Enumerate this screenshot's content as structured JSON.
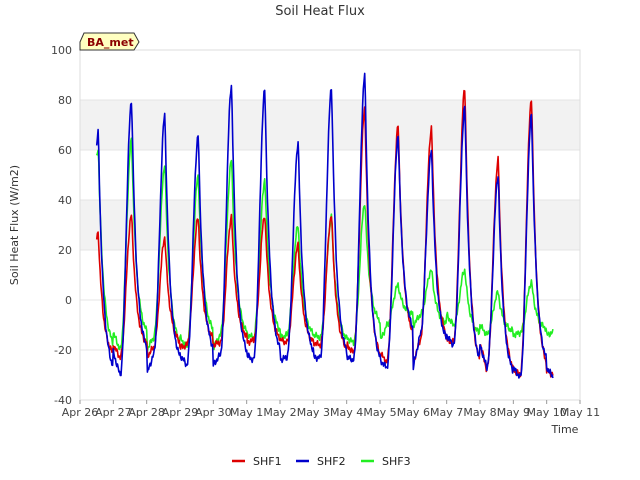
{
  "chart_data": {
    "type": "line",
    "title": "Soil Heat Flux",
    "xlabel": "Time",
    "ylabel": "Soil Heat Flux (W/m2)",
    "ylim": [
      -40,
      100
    ],
    "yticks": [
      -40,
      -20,
      0,
      20,
      40,
      60,
      80,
      100
    ],
    "xlim": [
      0,
      15
    ],
    "xticks": [
      0,
      1,
      2,
      3,
      4,
      5,
      6,
      7,
      8,
      9,
      10,
      11,
      12,
      13,
      14,
      15
    ],
    "xtick_labels": [
      "Apr 26",
      "Apr 27",
      "Apr 28",
      "Apr 29",
      "Apr 30",
      "May 1",
      "May 2",
      "May 3",
      "May 4",
      "May 5",
      "May 6",
      "May 7",
      "May 8",
      "May 9",
      "May 10",
      "May 11"
    ],
    "badge": "BA_met",
    "shaded_bands": [
      [
        20,
        40
      ],
      [
        60,
        80
      ]
    ],
    "series": [
      {
        "name": "SHF1",
        "color": "#dd0000",
        "daily": [
          {
            "min": -18,
            "peak": 27
          },
          {
            "min": -23,
            "peak": 34
          },
          {
            "min": -19,
            "peak": 25
          },
          {
            "min": -18,
            "peak": 33
          },
          {
            "min": -17,
            "peak": 33
          },
          {
            "min": -16,
            "peak": 34
          },
          {
            "min": -17,
            "peak": 22
          },
          {
            "min": -18,
            "peak": 34
          },
          {
            "min": -21,
            "peak": 77
          },
          {
            "min": -25,
            "peak": 70
          },
          {
            "min": -16,
            "peak": 69
          },
          {
            "min": -17,
            "peak": 85
          },
          {
            "min": -28,
            "peak": 56
          },
          {
            "min": -30,
            "peak": 81
          }
        ],
        "end_value": -29
      },
      {
        "name": "SHF2",
        "color": "#0000cc",
        "daily": [
          {
            "min": -21,
            "peak": 67
          },
          {
            "min": -30,
            "peak": 80
          },
          {
            "min": -22,
            "peak": 74
          },
          {
            "min": -26,
            "peak": 66
          },
          {
            "min": -22,
            "peak": 86
          },
          {
            "min": -24,
            "peak": 84
          },
          {
            "min": -23,
            "peak": 63
          },
          {
            "min": -23,
            "peak": 85
          },
          {
            "min": -24,
            "peak": 90
          },
          {
            "min": -27,
            "peak": 66
          },
          {
            "min": -14,
            "peak": 60
          },
          {
            "min": -18,
            "peak": 77
          },
          {
            "min": -27,
            "peak": 50
          },
          {
            "min": -31,
            "peak": 74
          }
        ],
        "end_value": -27
      },
      {
        "name": "SHF3",
        "color": "#22ee22",
        "daily": [
          {
            "min": -13,
            "peak": 61
          },
          {
            "min": -20,
            "peak": 64
          },
          {
            "min": -15,
            "peak": 54
          },
          {
            "min": -19,
            "peak": 50
          },
          {
            "min": -14,
            "peak": 56
          },
          {
            "min": -15,
            "peak": 48
          },
          {
            "min": -14,
            "peak": 30
          },
          {
            "min": -15,
            "peak": 33
          },
          {
            "min": -17,
            "peak": 39
          },
          {
            "min": -10,
            "peak": 6
          },
          {
            "min": -6,
            "peak": 12
          },
          {
            "min": -10,
            "peak": 12
          },
          {
            "min": -14,
            "peak": 3
          },
          {
            "min": -13,
            "peak": 7
          }
        ],
        "end_value": -12
      }
    ]
  }
}
